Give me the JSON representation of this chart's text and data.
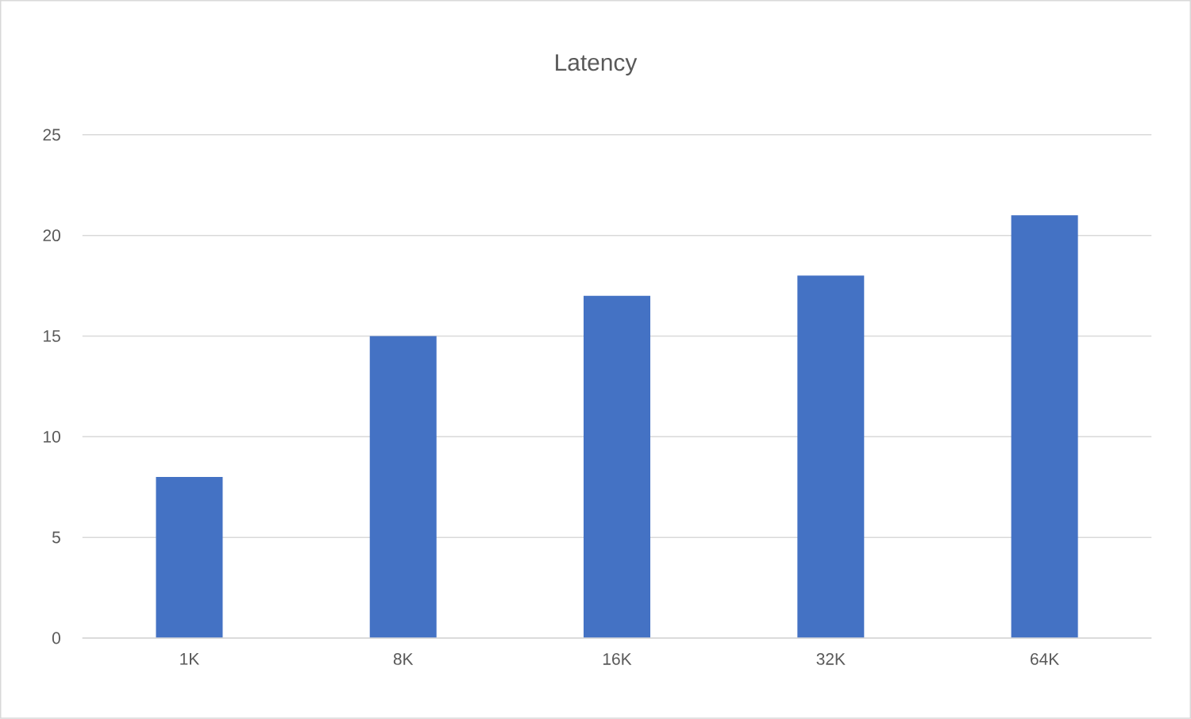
{
  "chart_data": {
    "type": "bar",
    "title": "Latency",
    "categories": [
      "1K",
      "8K",
      "16K",
      "32K",
      "64K"
    ],
    "values": [
      8,
      15,
      17,
      18,
      21
    ],
    "color": "#4472c4",
    "ylim": [
      0,
      25
    ],
    "yticks": [
      0,
      5,
      10,
      15,
      20,
      25
    ],
    "grid": "y"
  }
}
